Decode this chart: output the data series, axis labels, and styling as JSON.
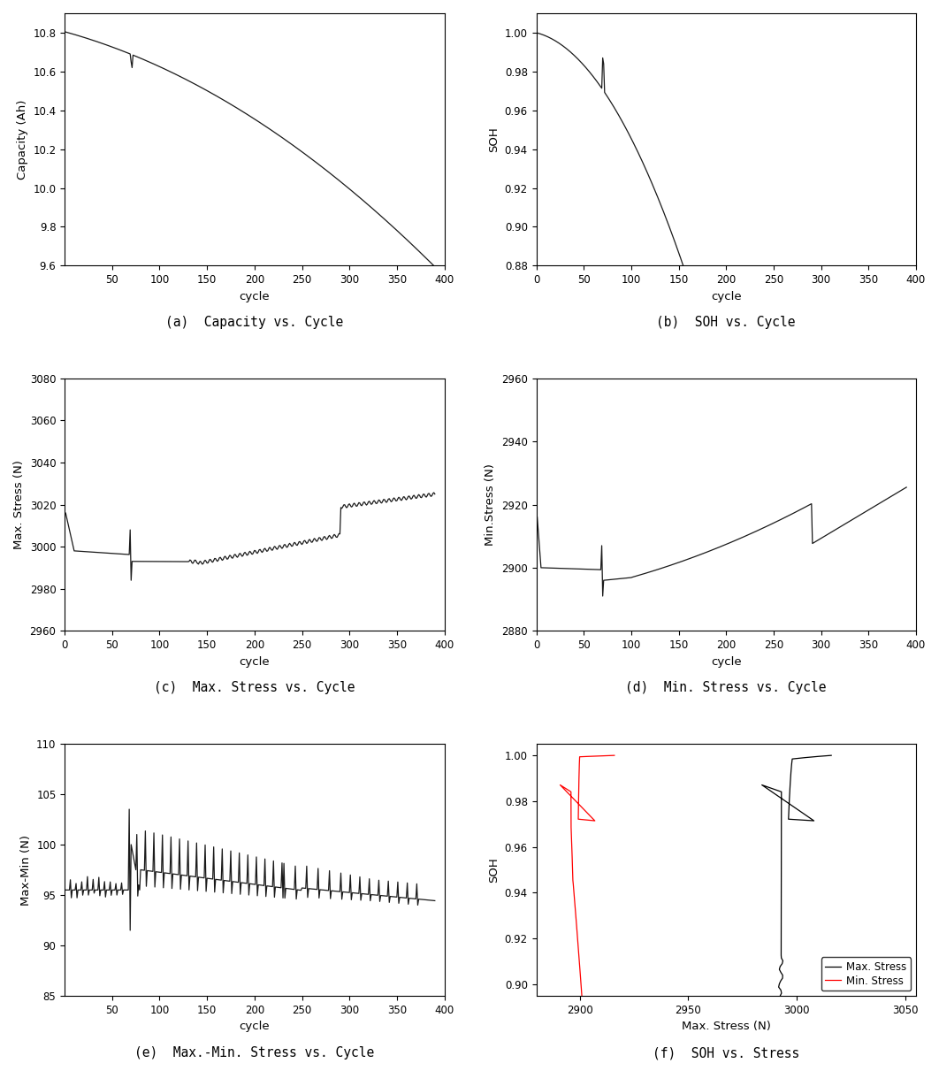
{
  "subplots": {
    "a": {
      "caption": "(a)  Capacity vs. Cycle",
      "xlabel": "cycle",
      "ylabel": "Capacity (Ah)",
      "xlim": [
        0,
        400
      ],
      "ylim": [
        9.6,
        10.9
      ],
      "yticks": [
        9.6,
        9.8,
        10.0,
        10.2,
        10.4,
        10.6,
        10.8
      ],
      "xticks": [
        50,
        100,
        150,
        200,
        250,
        300,
        350,
        400
      ]
    },
    "b": {
      "caption": "(b)  SOH vs. Cycle",
      "xlabel": "cycle",
      "ylabel": "SOH",
      "xlim": [
        0,
        400
      ],
      "ylim": [
        0.88,
        1.01
      ],
      "yticks": [
        0.88,
        0.9,
        0.92,
        0.94,
        0.96,
        0.98,
        1.0
      ],
      "xticks": [
        0,
        50,
        100,
        150,
        200,
        250,
        300,
        350,
        400
      ]
    },
    "c": {
      "caption": "(c)  Max. Stress vs. Cycle",
      "xlabel": "cycle",
      "ylabel": "Max. Stress (N)",
      "xlim": [
        0,
        400
      ],
      "ylim": [
        2960,
        3080
      ],
      "yticks": [
        2960,
        2980,
        3000,
        3020,
        3040,
        3060,
        3080
      ],
      "xticks": [
        0,
        50,
        100,
        150,
        200,
        250,
        300,
        350,
        400
      ]
    },
    "d": {
      "caption": "(d)  Min. Stress vs. Cycle",
      "xlabel": "cycle",
      "ylabel": "Min.Stress (N)",
      "xlim": [
        0,
        400
      ],
      "ylim": [
        2880,
        2960
      ],
      "yticks": [
        2880,
        2900,
        2920,
        2940,
        2960
      ],
      "xticks": [
        0,
        50,
        100,
        150,
        200,
        250,
        300,
        350,
        400
      ]
    },
    "e": {
      "caption": "(e)  Max.-Min. Stress vs. Cycle",
      "xlabel": "cycle",
      "ylabel": "Max-Min (N)",
      "xlim": [
        0,
        400
      ],
      "ylim": [
        85,
        110
      ],
      "yticks": [
        85,
        90,
        95,
        100,
        105,
        110
      ],
      "xticks": [
        50,
        100,
        150,
        200,
        250,
        300,
        350,
        400
      ]
    },
    "f": {
      "caption": "(f)  SOH vs. Stress",
      "xlabel": "Max. Stress (N)",
      "ylabel": "SOH",
      "xlim": [
        2880,
        3055
      ],
      "ylim": [
        0.895,
        1.005
      ],
      "xticks": [
        2900,
        2950,
        3000,
        3050
      ],
      "yticks": [
        0.9,
        0.92,
        0.94,
        0.96,
        0.98,
        1.0
      ],
      "legend_max": "Max. Stress",
      "legend_min": "Min. Stress"
    }
  },
  "line_color": "#1a1a1a",
  "caption_fontsize": 10.5,
  "axis_label_fontsize": 9.5,
  "tick_fontsize": 8.5
}
